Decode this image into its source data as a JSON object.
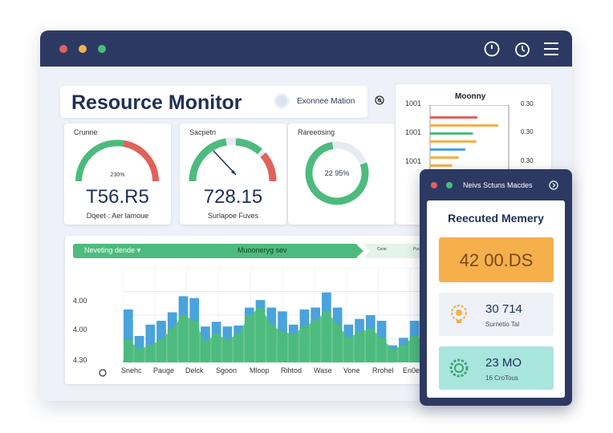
{
  "app": {
    "title": "Resource Monitor",
    "chip_label": "Exonnee Mation",
    "colors": {
      "titlebar": "#2c3a63",
      "green": "#4dbb7d",
      "blue": "#4aa3dc",
      "red": "#e0625a",
      "orange": "#f5b04c",
      "teal": "#a8e6dd"
    }
  },
  "titlebar": {
    "icons": [
      "clock-icon",
      "stopwatch-icon",
      "menu-icon"
    ]
  },
  "gauges": [
    {
      "label": "Crunne",
      "percent_text": "230%",
      "value": "T56.R5",
      "sub": "Dqeet·: Aer lamoue",
      "level": 0.72
    },
    {
      "label": "Sacpetn",
      "value": "728.15",
      "sub": "Surlapoe Fuves",
      "level": 0.62
    },
    {
      "label": "Rareeosing",
      "center": "22 95%",
      "level": 0.78
    }
  ],
  "side_chart": {
    "title": "Moonny",
    "y_labels": [
      "1001",
      "1001",
      "1001"
    ],
    "right_labels": [
      "0.30",
      "0.30",
      "0.30"
    ],
    "chart_data": {
      "type": "bar",
      "orientation": "horizontal",
      "series": [
        {
          "values": [
            4.3,
            6.2,
            3.9,
            4.2,
            3.2,
            2.6,
            2.0
          ],
          "colors": [
            "#e0625a",
            "#f5b04c",
            "#4dbb7d",
            "#f5b04c",
            "#4aa3dc",
            "#f5b04c",
            "#f5b04c"
          ]
        }
      ]
    }
  },
  "main_chart": {
    "header_left": "Neveting dende",
    "header_mid": "Muooneryg sev",
    "header_tags": [
      "Csoe",
      "Pvo"
    ],
    "y_ticks": [
      "4.00",
      "4.00",
      "4.30"
    ],
    "x_ticks": [
      "Snehc",
      "Pauge",
      "Delck",
      "Sgoon",
      "Mloop",
      "Rihtod",
      "Wase",
      "Vone",
      "Rrohel",
      "En0es"
    ],
    "chart_data": {
      "type": "bar",
      "series": [
        {
          "name": "",
          "color": "#4aa3dc",
          "values": [
            56,
            28,
            40,
            44,
            53,
            70,
            68,
            38,
            43,
            38,
            39,
            58,
            66,
            58,
            54,
            40,
            56,
            58,
            74,
            58,
            40,
            46,
            50,
            44,
            18,
            26,
            44,
            36,
            38
          ]
        },
        {
          "name": "",
          "color": "#4dbb7d",
          "values": [
            24,
            14,
            18,
            24,
            36,
            50,
            44,
            22,
            30,
            24,
            30,
            50,
            58,
            40,
            32,
            30,
            38,
            44,
            54,
            40,
            26,
            32,
            36,
            26,
            14,
            18,
            28,
            22,
            20
          ]
        }
      ]
    }
  },
  "popup": {
    "title": "Neivs Sctuns Macdes",
    "heading": "Reecuted Memery",
    "big_value": "42 00.DS",
    "stats": [
      {
        "value": "30 714",
        "sub": "Surnetio Tal",
        "icon": "gear-bulb-icon",
        "bg": "#eef2f8"
      },
      {
        "value": "23 MO",
        "sub": "16 CroTous",
        "icon": "cog-icon",
        "bg": "#a8e6dd"
      }
    ]
  }
}
